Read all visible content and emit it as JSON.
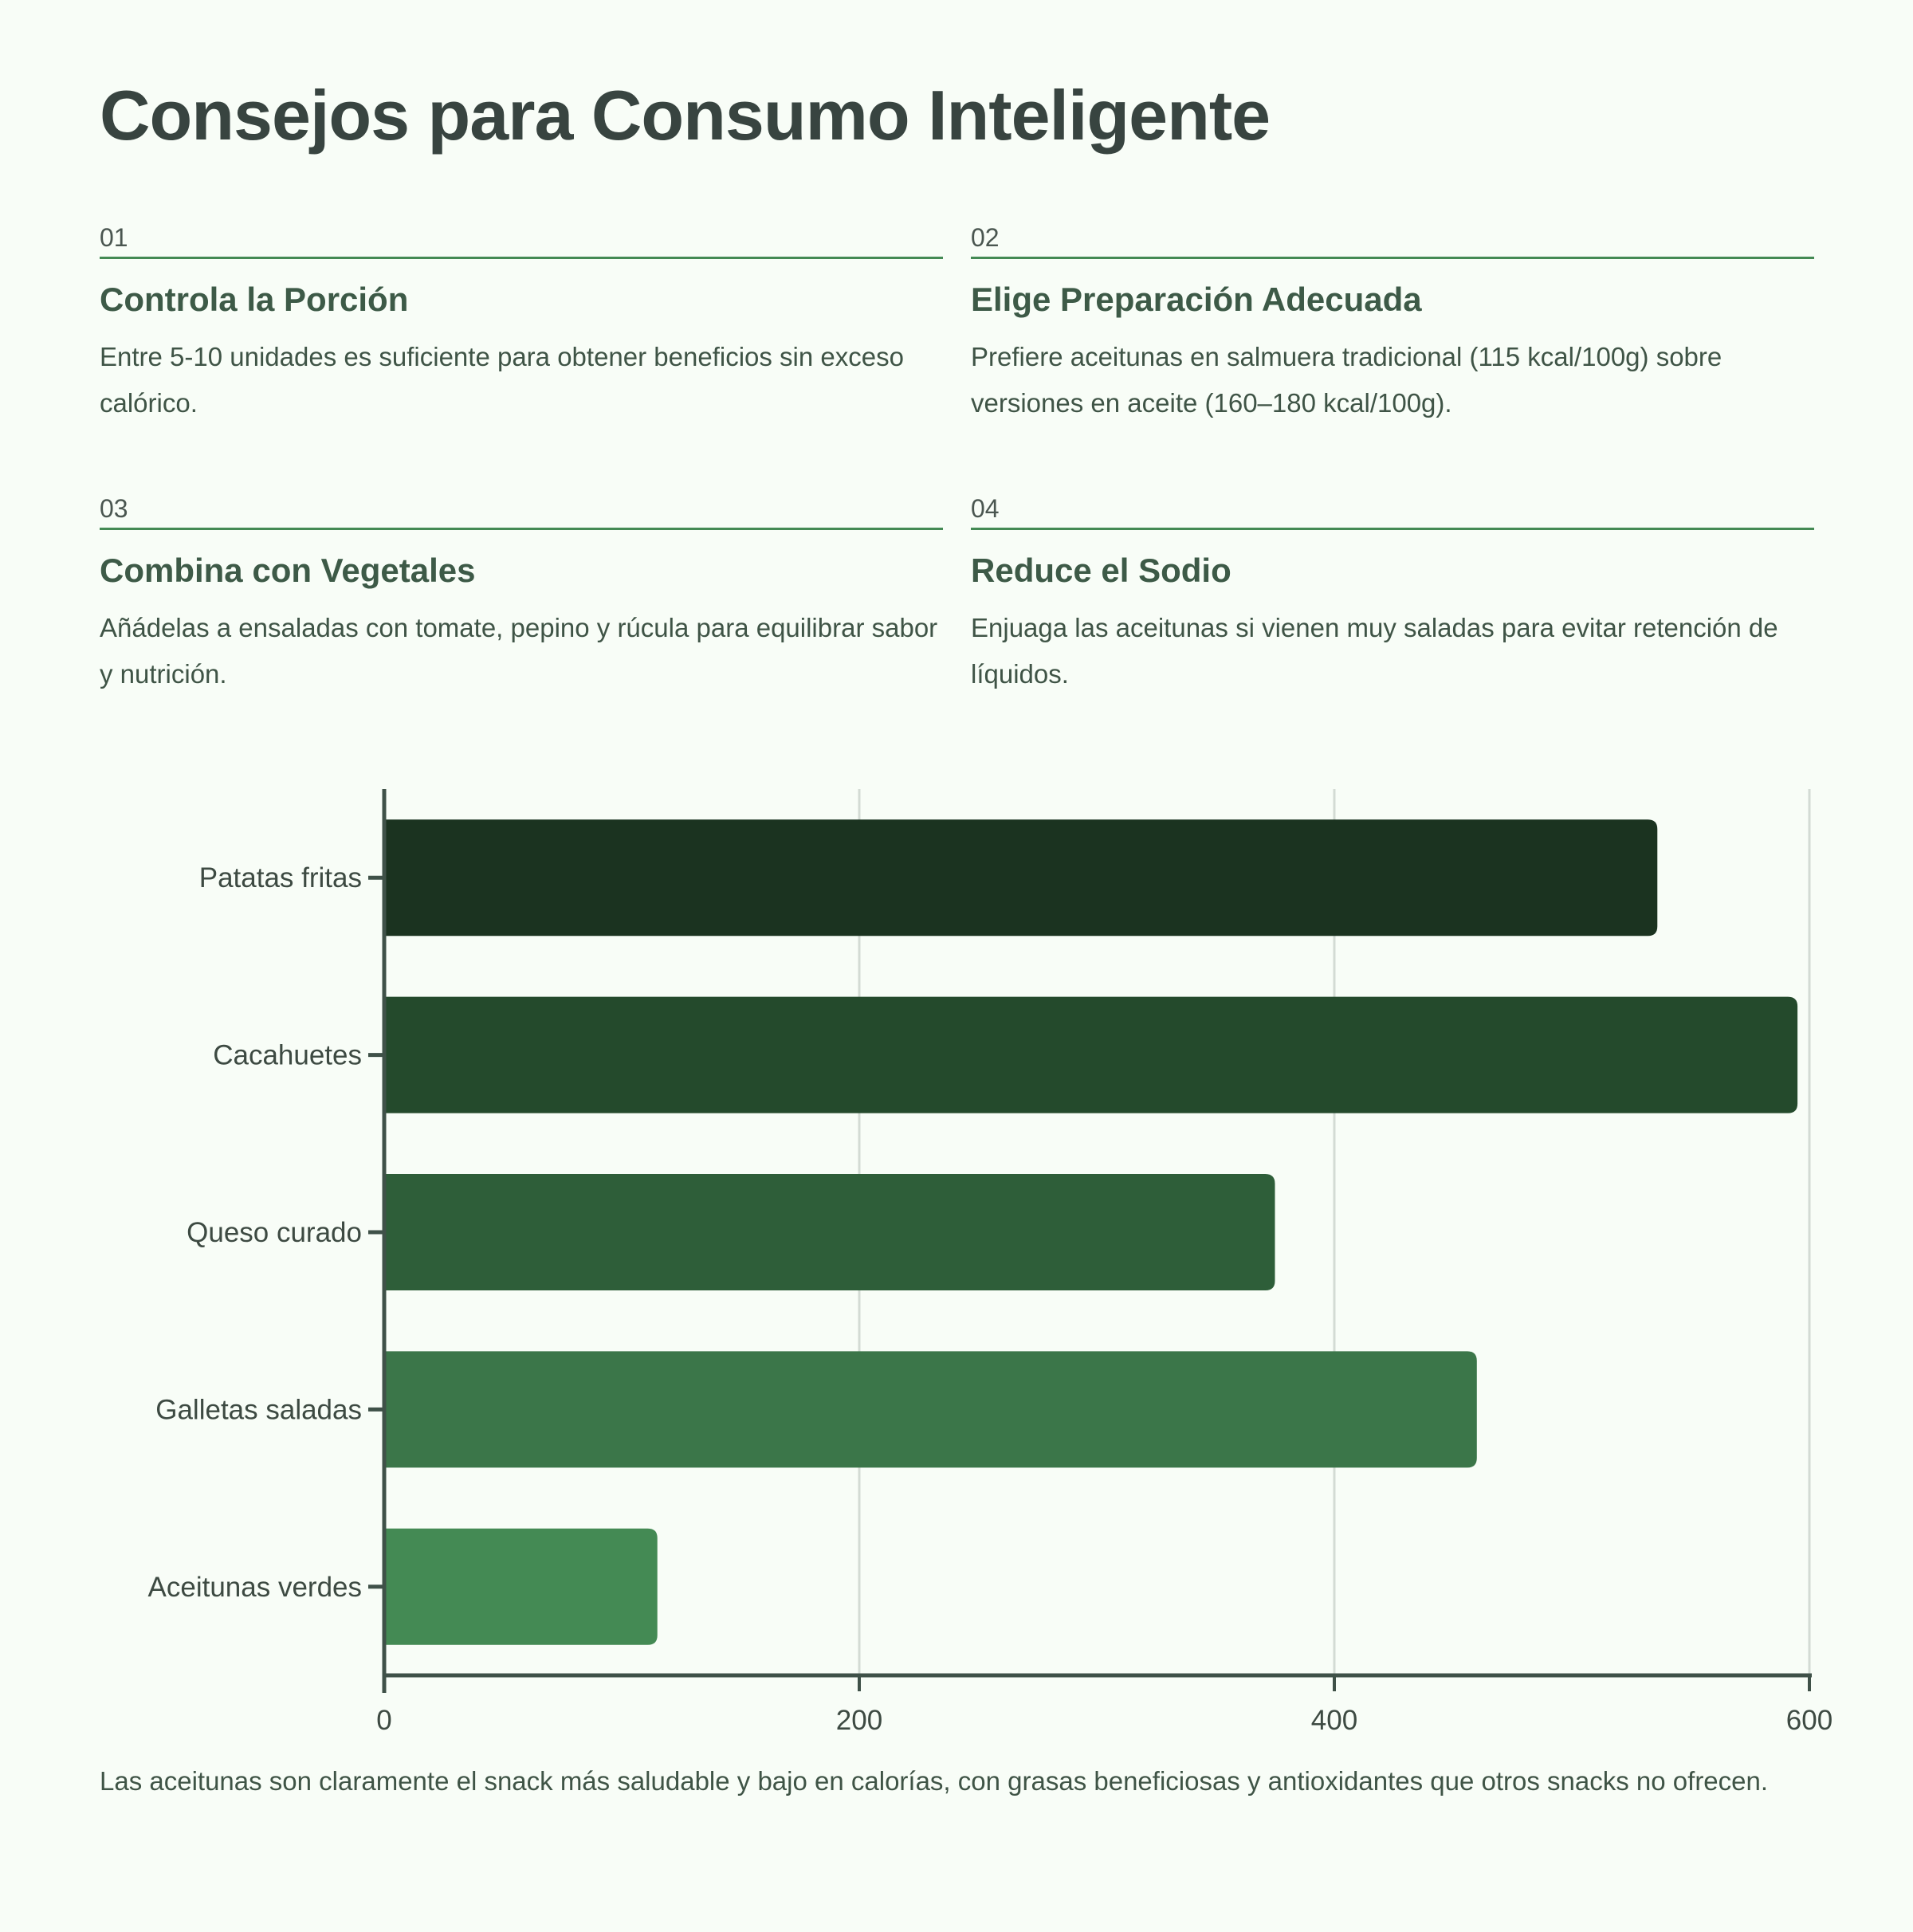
{
  "title": "Consejos para Consumo Inteligente",
  "tips": [
    {
      "number": "01",
      "heading": "Controla la Porción",
      "body": "Entre 5-10 unidades es suficiente para obtener beneficios sin exceso calórico."
    },
    {
      "number": "02",
      "heading": "Elige Preparación Adecuada",
      "body": "Prefiere aceitunas en salmuera tradicional (115 kcal/100g) sobre versiones en aceite (160–180 kcal/100g)."
    },
    {
      "number": "03",
      "heading": "Combina con Vegetales",
      "body": "Añádelas a ensaladas con tomate, pepino y rúcula para equilibrar sabor y nutrición."
    },
    {
      "number": "04",
      "heading": "Reduce el Sodio",
      "body": "Enjuaga las aceitunas si vienen muy saladas para evitar retención de líquidos."
    }
  ],
  "colors": {
    "background": "#f8fdf7",
    "accent_rule": "#448a54",
    "axis": "#3f5148",
    "grid": "#d3dbd4",
    "bars": [
      "#1b3320",
      "#244a2c",
      "#2e5e39",
      "#3b7649",
      "#448a54"
    ]
  },
  "chart_data": {
    "type": "bar",
    "orientation": "horizontal",
    "title": "",
    "xlabel": "",
    "ylabel": "",
    "categories": [
      "Patatas fritas",
      "Cacahuetes",
      "Queso curado",
      "Galletas saladas",
      "Aceitunas verdes"
    ],
    "values": [
      536,
      595,
      375,
      460,
      115
    ],
    "unit": "kcal/100g",
    "xlim": [
      0,
      600
    ],
    "x_ticks": [
      0,
      200,
      400,
      600
    ],
    "grid": "vertical",
    "legend": "none"
  },
  "footnote": "Las aceitunas son claramente el snack más saludable y bajo en calorías, con grasas beneficiosas y antioxidantes que otros snacks no ofrecen."
}
